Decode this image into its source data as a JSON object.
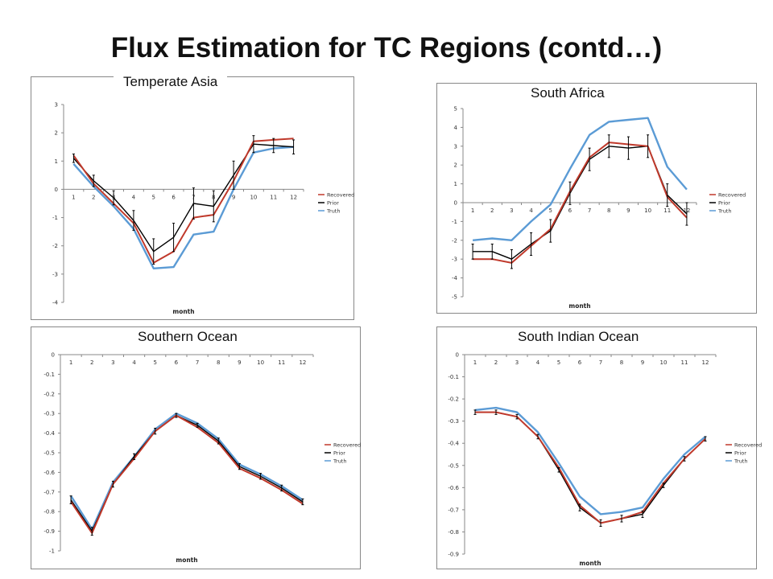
{
  "page": {
    "title": "Flux Estimation for TC Regions (contd…)"
  },
  "chart_data": [
    {
      "type": "line",
      "title": "Temperate Asia",
      "xlabel": "month",
      "ylabel": "",
      "categories": [
        "1",
        "2",
        "3",
        "4",
        "5",
        "6",
        "7",
        "8",
        "9",
        "10",
        "11",
        "12"
      ],
      "ylim": [
        -4,
        3
      ],
      "yticks": [
        3,
        2,
        1,
        0,
        -1,
        -2,
        -3,
        -4
      ],
      "ytick_labels": [
        "3",
        "2",
        "1",
        "0",
        "-1",
        "-2",
        "-3",
        "-4"
      ],
      "xaxis_at": 0,
      "legend": "right",
      "grid": false,
      "series": [
        {
          "name": "Recovered",
          "color": "#c0392b",
          "values": [
            1.2,
            0.2,
            -0.5,
            -1.2,
            -2.6,
            -2.2,
            -1.0,
            -0.9,
            0.3,
            1.7,
            1.75,
            1.8
          ]
        },
        {
          "name": "Prior",
          "color": "#000000",
          "values": [
            1.1,
            0.3,
            -0.3,
            -1.1,
            -2.2,
            -1.7,
            -0.5,
            -0.6,
            0.5,
            1.6,
            1.55,
            1.5
          ]
        },
        {
          "name": "Truth",
          "color": "#5b9bd5",
          "values": [
            0.9,
            0.1,
            -0.6,
            -1.4,
            -2.8,
            -2.75,
            -1.6,
            -1.5,
            0.0,
            1.3,
            1.45,
            1.5
          ]
        }
      ],
      "error_bars": [
        0.15,
        0.2,
        0.25,
        0.35,
        0.45,
        0.5,
        0.55,
        0.55,
        0.5,
        0.3,
        0.25,
        0.25
      ]
    },
    {
      "type": "line",
      "title": "South Africa",
      "xlabel": "month",
      "ylabel": "",
      "categories": [
        "1",
        "2",
        "3",
        "4",
        "5",
        "6",
        "7",
        "8",
        "9",
        "10",
        "11",
        "12"
      ],
      "ylim": [
        -5,
        5
      ],
      "yticks": [
        5,
        4,
        3,
        2,
        1,
        0,
        -1,
        -2,
        -3,
        -4,
        -5
      ],
      "ytick_labels": [
        "5",
        "4",
        "3",
        "2",
        "1",
        "0",
        "-1",
        "-2",
        "-3",
        "-4",
        "-5"
      ],
      "xaxis_at": 0,
      "legend": "right",
      "grid": false,
      "series": [
        {
          "name": "Recovered",
          "color": "#c0392b",
          "values": [
            -3.0,
            -3.0,
            -3.2,
            -2.3,
            -1.4,
            0.6,
            2.4,
            3.2,
            3.1,
            3.0,
            0.3,
            -0.8
          ]
        },
        {
          "name": "Prior",
          "color": "#000000",
          "values": [
            -2.6,
            -2.6,
            -3.0,
            -2.2,
            -1.5,
            0.5,
            2.3,
            3.0,
            2.9,
            3.0,
            0.4,
            -0.6
          ]
        },
        {
          "name": "Truth",
          "color": "#5b9bd5",
          "values": [
            -2.0,
            -1.9,
            -2.0,
            -1.0,
            -0.1,
            1.8,
            3.6,
            4.3,
            4.4,
            4.5,
            1.9,
            0.7
          ]
        }
      ],
      "error_bars": [
        0.4,
        0.4,
        0.5,
        0.6,
        0.6,
        0.6,
        0.6,
        0.6,
        0.6,
        0.6,
        0.6,
        0.6
      ]
    },
    {
      "type": "line",
      "title": "Southern Ocean",
      "xlabel": "month",
      "ylabel": "",
      "categories": [
        "1",
        "2",
        "3",
        "4",
        "5",
        "6",
        "7",
        "8",
        "9",
        "10",
        "11",
        "12"
      ],
      "ylim": [
        -1,
        0
      ],
      "yticks": [
        0,
        -0.1,
        -0.2,
        -0.3,
        -0.4,
        -0.5,
        -0.6,
        -0.7,
        -0.8,
        -0.9,
        -1
      ],
      "ytick_labels": [
        "0",
        "-0.1",
        "-0.2",
        "-0.3",
        "-0.4",
        "-0.5",
        "-0.6",
        "-0.7",
        "-0.8",
        "-0.9",
        "-1"
      ],
      "xaxis_at": 0,
      "legend": "right",
      "grid": false,
      "series": [
        {
          "name": "Recovered",
          "color": "#c0392b",
          "values": [
            -0.75,
            -0.91,
            -0.66,
            -0.53,
            -0.39,
            -0.31,
            -0.37,
            -0.45,
            -0.58,
            -0.63,
            -0.69,
            -0.76
          ]
        },
        {
          "name": "Prior",
          "color": "#000000",
          "values": [
            -0.74,
            -0.9,
            -0.66,
            -0.52,
            -0.39,
            -0.31,
            -0.36,
            -0.44,
            -0.57,
            -0.62,
            -0.68,
            -0.75
          ]
        },
        {
          "name": "Truth",
          "color": "#5b9bd5",
          "values": [
            -0.72,
            -0.89,
            -0.65,
            -0.52,
            -0.38,
            -0.3,
            -0.35,
            -0.43,
            -0.56,
            -0.61,
            -0.67,
            -0.74
          ]
        }
      ],
      "error_bars": [
        0.02,
        0.02,
        0.015,
        0.015,
        0.015,
        0.01,
        0.01,
        0.015,
        0.015,
        0.015,
        0.015,
        0.015
      ]
    },
    {
      "type": "line",
      "title": "South Indian Ocean",
      "xlabel": "month",
      "ylabel": "",
      "categories": [
        "1",
        "2",
        "3",
        "4",
        "5",
        "6",
        "7",
        "8",
        "9",
        "10",
        "11",
        "12"
      ],
      "ylim": [
        -0.9,
        0
      ],
      "yticks": [
        0,
        -0.1,
        -0.2,
        -0.3,
        -0.4,
        -0.5,
        -0.6,
        -0.7,
        -0.8,
        -0.9
      ],
      "ytick_labels": [
        "0",
        "-0.1",
        "-0.2",
        "-0.3",
        "-0.4",
        "-0.5",
        "-0.6",
        "-0.7",
        "-0.8",
        "-0.9"
      ],
      "xaxis_at": 0,
      "legend": "right",
      "grid": false,
      "series": [
        {
          "name": "Recovered",
          "color": "#c0392b",
          "values": [
            -0.26,
            -0.26,
            -0.28,
            -0.37,
            -0.51,
            -0.68,
            -0.76,
            -0.74,
            -0.71,
            -0.58,
            -0.47,
            -0.38
          ]
        },
        {
          "name": "Prior",
          "color": "#000000",
          "values": [
            -0.26,
            -0.26,
            -0.28,
            -0.37,
            -0.52,
            -0.69,
            -0.76,
            -0.74,
            -0.72,
            -0.59,
            -0.47,
            -0.38
          ]
        },
        {
          "name": "Truth",
          "color": "#5b9bd5",
          "values": [
            -0.25,
            -0.24,
            -0.26,
            -0.35,
            -0.49,
            -0.64,
            -0.72,
            -0.71,
            -0.69,
            -0.56,
            -0.45,
            -0.37
          ]
        }
      ],
      "error_bars": [
        0.01,
        0.01,
        0.01,
        0.01,
        0.01,
        0.015,
        0.015,
        0.015,
        0.015,
        0.01,
        0.01,
        0.01
      ]
    }
  ]
}
